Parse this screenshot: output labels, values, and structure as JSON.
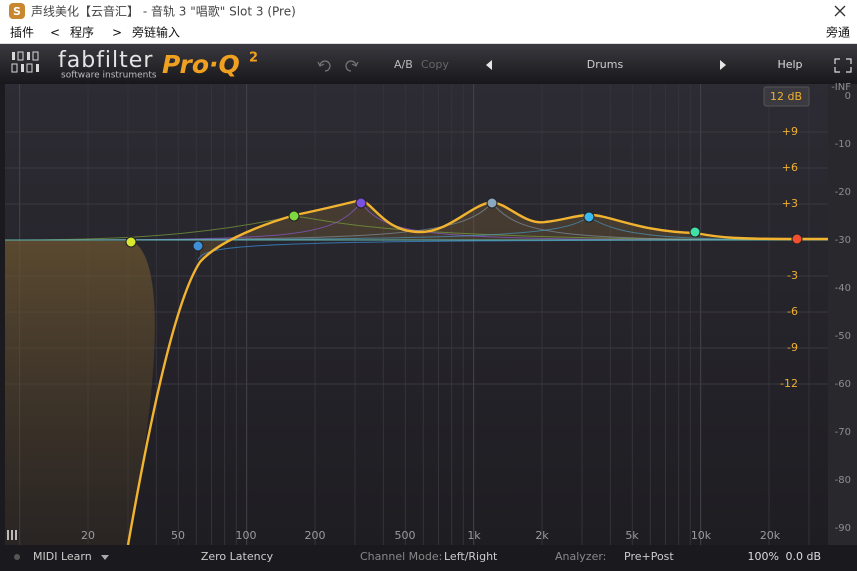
{
  "window": {
    "title": "声线美化【云音汇】 - 音轨 3  \"唱歌\" Slot 3 (Pre)"
  },
  "menu": {
    "items": [
      "插件",
      "<",
      "程序",
      ">",
      "旁链输入"
    ],
    "right": "旁通"
  },
  "header": {
    "brand": "fabfilter",
    "tagline": "software instruments",
    "product": "Pro·Q",
    "product_sup": "2",
    "ab": "A/B",
    "copy": "Copy",
    "preset": "Drums",
    "help": "Help"
  },
  "graph": {
    "range_button": "12 dB",
    "gain_labels": [
      "+9",
      "+6",
      "+3",
      "-3",
      "-6",
      "-9",
      "-12"
    ],
    "level_labels": [
      "-INF",
      "0",
      "-10",
      "-20",
      "-30",
      "-40",
      "-50",
      "-60",
      "-70",
      "-80",
      "-90"
    ],
    "freq_labels": [
      "20",
      "50",
      "100",
      "200",
      "500",
      "1k",
      "2k",
      "5k",
      "10k",
      "20k"
    ]
  },
  "footer": {
    "midi": "MIDI Learn",
    "latency": "Zero Latency",
    "channel_mode_label": "Channel Mode:",
    "channel_mode": "Left/Right",
    "analyzer_label": "Analyzer:",
    "analyzer": "Pre+Post",
    "zoom": "100%",
    "gain": "0.0 dB"
  }
}
